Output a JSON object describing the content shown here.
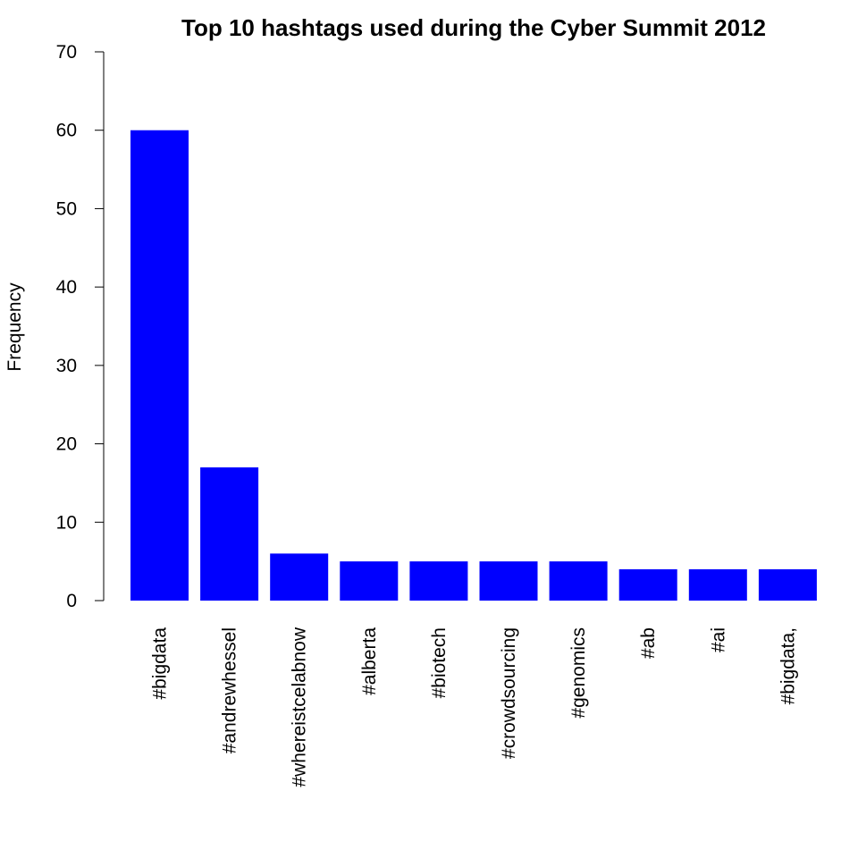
{
  "chart_data": {
    "type": "bar",
    "title": "Top 10 hashtags used during the Cyber Summit 2012",
    "xlabel": "",
    "ylabel": "Frequency",
    "categories": [
      "#bigdata",
      "#andrewhessel",
      "#whereistcelabnow",
      "#alberta",
      "#biotech",
      "#crowdsourcing",
      "#genomics",
      "#ab",
      "#ai",
      "#bigdata,"
    ],
    "values": [
      60,
      17,
      6,
      5,
      5,
      5,
      5,
      4,
      4,
      4
    ],
    "ylim": [
      0,
      70
    ],
    "yticks": [
      0,
      10,
      20,
      30,
      40,
      50,
      60,
      70
    ],
    "bar_color": "#0000FF",
    "grid": false,
    "legend": "none"
  }
}
